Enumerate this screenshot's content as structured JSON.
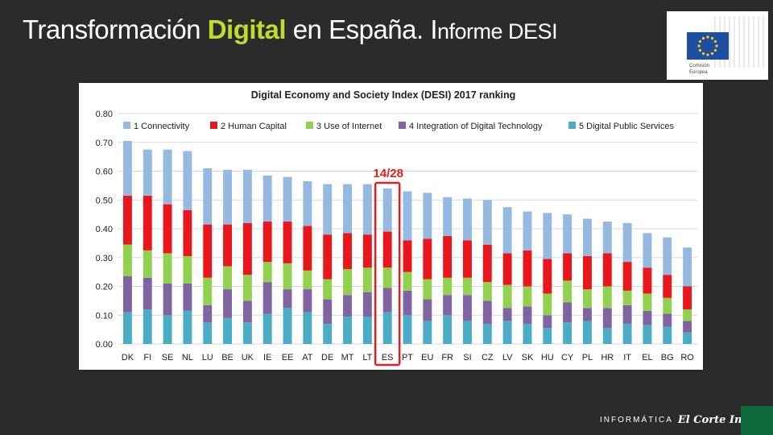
{
  "slide": {
    "title_part1": "Transformación ",
    "title_highlight": "Digital",
    "title_part2": " en España. I",
    "title_part3": "nforme DESI"
  },
  "logo": {
    "line1": "Comisión",
    "line2": "Europea",
    "flag_color": "#1f4fa3",
    "star_color": "#ffd200"
  },
  "footer": {
    "brand_text": "INFORMÁTICA",
    "brand_script": "El Corte Inglés"
  },
  "highlight": {
    "label": "14/28",
    "category": "ES",
    "color": "#e02020"
  },
  "chart_data": {
    "type": "bar",
    "stacked": true,
    "title": "Digital Economy and Society Index (DESI) 2017 ranking",
    "categories": [
      "DK",
      "FI",
      "SE",
      "NL",
      "LU",
      "BE",
      "UK",
      "IE",
      "EE",
      "AT",
      "DE",
      "MT",
      "LT",
      "ES",
      "PT",
      "EU",
      "FR",
      "SI",
      "CZ",
      "LV",
      "SK",
      "HU",
      "CY",
      "PL",
      "HR",
      "IT",
      "EL",
      "BG",
      "RO"
    ],
    "ylim": [
      0,
      0.8
    ],
    "yticks": [
      "0.00",
      "0.10",
      "0.20",
      "0.30",
      "0.40",
      "0.50",
      "0.60",
      "0.70",
      "0.80"
    ],
    "grid": true,
    "legend_position": "top",
    "series": [
      {
        "name": "1 Connectivity",
        "color": "#95b9e0",
        "values": [
          0.19,
          0.16,
          0.19,
          0.205,
          0.195,
          0.19,
          0.185,
          0.16,
          0.155,
          0.155,
          0.175,
          0.17,
          0.175,
          0.15,
          0.17,
          0.16,
          0.135,
          0.145,
          0.155,
          0.16,
          0.135,
          0.16,
          0.135,
          0.13,
          0.11,
          0.135,
          0.12,
          0.13,
          0.135
        ]
      },
      {
        "name": "2 Human Capital",
        "color": "#e8171e",
        "values": [
          0.17,
          0.19,
          0.17,
          0.16,
          0.185,
          0.145,
          0.18,
          0.14,
          0.145,
          0.155,
          0.155,
          0.125,
          0.115,
          0.125,
          0.11,
          0.14,
          0.145,
          0.13,
          0.13,
          0.11,
          0.125,
          0.12,
          0.095,
          0.115,
          0.115,
          0.1,
          0.09,
          0.08,
          0.08
        ]
      },
      {
        "name": "3 Use of Internet",
        "color": "#92d050",
        "values": [
          0.11,
          0.095,
          0.105,
          0.095,
          0.095,
          0.08,
          0.09,
          0.07,
          0.09,
          0.065,
          0.07,
          0.09,
          0.085,
          0.07,
          0.065,
          0.07,
          0.06,
          0.06,
          0.065,
          0.08,
          0.07,
          0.075,
          0.075,
          0.065,
          0.075,
          0.05,
          0.06,
          0.055,
          0.04
        ]
      },
      {
        "name": "4 Integration of Digital Technology",
        "color": "#8064a2",
        "values": [
          0.125,
          0.11,
          0.11,
          0.095,
          0.06,
          0.1,
          0.075,
          0.11,
          0.065,
          0.08,
          0.085,
          0.075,
          0.085,
          0.085,
          0.085,
          0.075,
          0.07,
          0.09,
          0.08,
          0.045,
          0.06,
          0.045,
          0.07,
          0.045,
          0.07,
          0.065,
          0.05,
          0.045,
          0.04
        ]
      },
      {
        "name": "5 Digital Public Services",
        "color": "#4bacc6",
        "values": [
          0.11,
          0.12,
          0.1,
          0.115,
          0.075,
          0.09,
          0.075,
          0.105,
          0.125,
          0.11,
          0.07,
          0.095,
          0.095,
          0.11,
          0.1,
          0.08,
          0.1,
          0.08,
          0.07,
          0.08,
          0.07,
          0.055,
          0.075,
          0.08,
          0.055,
          0.07,
          0.065,
          0.06,
          0.04
        ]
      }
    ]
  }
}
